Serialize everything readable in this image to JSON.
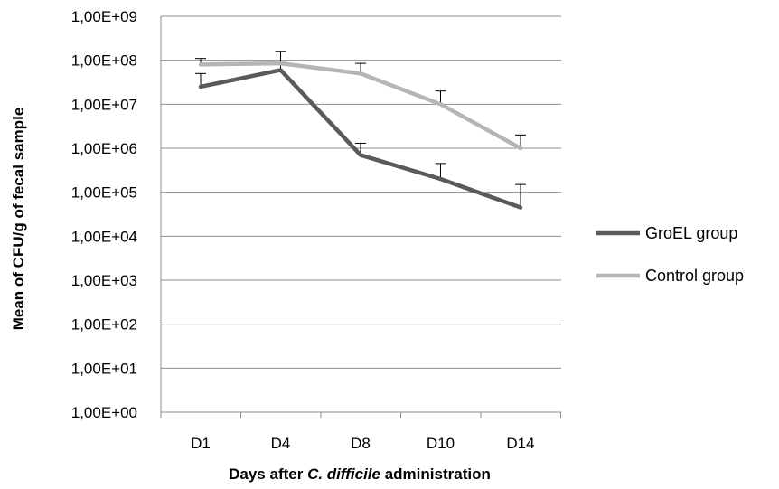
{
  "chart_data": {
    "type": "line",
    "title": "",
    "xlabel": {
      "prefix": "Days after ",
      "italic": "C. difficile",
      "suffix": " administration"
    },
    "ylabel": "Mean of CFU/g of fecal sample",
    "scale": "log10",
    "ylim": [
      0,
      9
    ],
    "y_ticks": [
      "1,00E+00",
      "1,00E+01",
      "1,00E+02",
      "1,00E+03",
      "1,00E+04",
      "1,00E+05",
      "1,00E+06",
      "1,00E+07",
      "1,00E+08",
      "1,00E+09"
    ],
    "grid": true,
    "legend_position": "right",
    "categories": [
      "D1",
      "D4",
      "D8",
      "D10",
      "D14"
    ],
    "series": [
      {
        "name": "GroEL group",
        "color": "#5a5a5a",
        "values": [
          25000000,
          60000000,
          700000,
          200000,
          45000
        ],
        "error_upper": [
          50000000,
          90000000,
          1300000,
          450000,
          150000
        ]
      },
      {
        "name": "Control group",
        "color": "#b5b5b5",
        "values": [
          80000000,
          85000000,
          50000000,
          10000000,
          1000000
        ],
        "error_upper": [
          110000000,
          160000000,
          85000000,
          20000000,
          2000000
        ]
      }
    ]
  }
}
